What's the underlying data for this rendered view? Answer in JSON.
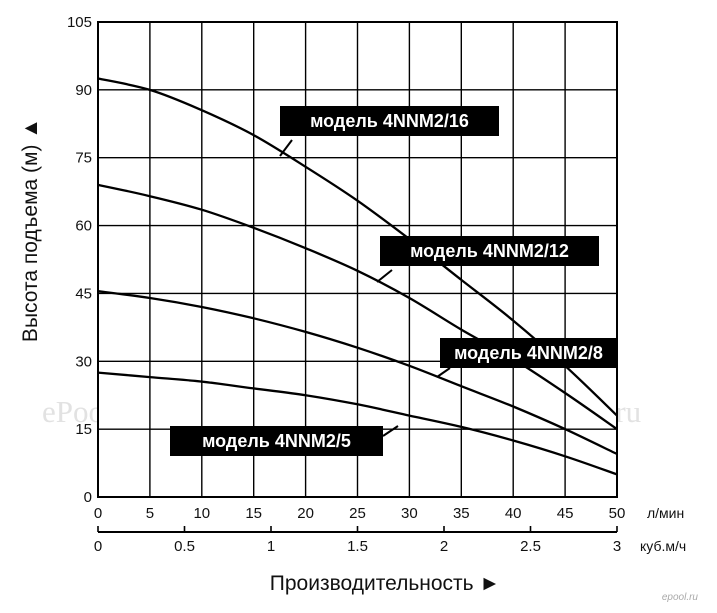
{
  "chart_data": {
    "type": "line",
    "ylabel": "Высота подъема (м) ▲",
    "xlabel": "Производительность ►",
    "ylim": [
      0,
      105
    ],
    "y_ticks": [
      0,
      15,
      30,
      45,
      60,
      75,
      90,
      105
    ],
    "x_primary": {
      "ticks": [
        0,
        5,
        10,
        15,
        20,
        25,
        30,
        35,
        40,
        45,
        50
      ],
      "unit": "л/мин"
    },
    "x_secondary": {
      "ticks": [
        "0",
        "0.5",
        "1",
        "1.5",
        "2",
        "2.5",
        "3"
      ],
      "unit": "куб.м/ч"
    },
    "xlim": [
      0,
      50
    ],
    "grid": true,
    "series": [
      {
        "name": "модель 4NNM2/16",
        "x": [
          0,
          5,
          10,
          15,
          20,
          25,
          30,
          35,
          40,
          45,
          50
        ],
        "y": [
          92.5,
          90,
          85.5,
          80,
          73,
          65.5,
          57,
          48,
          39,
          29,
          18
        ]
      },
      {
        "name": "модель 4NNM2/12",
        "x": [
          0,
          5,
          10,
          15,
          20,
          25,
          30,
          35,
          40,
          45,
          50
        ],
        "y": [
          69,
          66.5,
          63.5,
          59.5,
          55,
          50,
          44,
          37,
          30.5,
          23,
          15
        ]
      },
      {
        "name": "модель 4NNM2/8",
        "x": [
          0,
          5,
          10,
          15,
          20,
          25,
          30,
          35,
          40,
          45,
          50
        ],
        "y": [
          45.5,
          44,
          42,
          39.5,
          36.5,
          33,
          29,
          24.5,
          20,
          15,
          9.5
        ]
      },
      {
        "name": "модель 4NNM2/5",
        "x": [
          0,
          5,
          10,
          15,
          20,
          25,
          30,
          35,
          40,
          45,
          50
        ],
        "y": [
          27.5,
          26.5,
          25.5,
          24,
          22.5,
          20.5,
          18,
          15.5,
          12.5,
          9,
          5
        ]
      }
    ]
  },
  "watermark": "ePool.ru",
  "brand": "epool.ru"
}
